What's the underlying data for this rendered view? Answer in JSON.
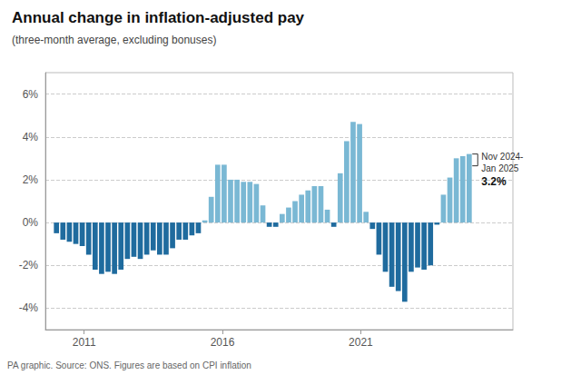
{
  "chart_data": {
    "type": "bar",
    "title": "Annual change in inflation-adjusted pay",
    "subtitle": "(three-month average, excluding bonuses)",
    "footer": "PA graphic. Source: ONS. Figures are based on CPI inflation",
    "annotations": [
      "Nov 2024-\nJan 2025",
      "3.2%"
    ],
    "x": [
      2010,
      2010.233125,
      2010.46625,
      2010.699375,
      2010.9325,
      2011.165625,
      2011.39875,
      2011.631875,
      2011.865,
      2012.098125,
      2012.33125,
      2012.564375,
      2012.7975,
      2013.030625,
      2013.26375,
      2013.496875,
      2013.73,
      2013.963125,
      2014.19625,
      2014.429375,
      2014.6625,
      2014.895625,
      2015.12875,
      2015.361875,
      2015.595,
      2015.828125,
      2016.06125,
      2016.294375,
      2016.5275,
      2016.760625,
      2016.99375,
      2017.226875,
      2017.46,
      2017.693125,
      2017.92625,
      2018.159375,
      2018.3925,
      2018.625625,
      2018.85875,
      2019.091875,
      2019.325,
      2019.558125,
      2019.79125,
      2020.024375,
      2020.2575,
      2020.490625,
      2020.72375,
      2020.956875,
      2021.19,
      2021.423125,
      2021.65625,
      2021.889375,
      2022.1225,
      2022.355625,
      2022.58875,
      2022.821875,
      2023.055,
      2023.288125,
      2023.52125,
      2023.754375,
      2023.9875,
      2024.220625,
      2024.45375,
      2024.686875,
      2024.92
    ],
    "values": [
      -0.5,
      -0.8,
      -0.9,
      -1.0,
      -1.1,
      -1.5,
      -2.2,
      -2.4,
      -2.3,
      -2.4,
      -2.2,
      -1.7,
      -1.6,
      -1.7,
      -1.5,
      -1.3,
      -1.5,
      -1.5,
      -1.2,
      -0.8,
      -0.8,
      -0.6,
      -0.5,
      0.1,
      1.2,
      2.7,
      2.7,
      2.0,
      2.0,
      1.9,
      1.9,
      1.8,
      0.8,
      -0.2,
      -0.2,
      0.4,
      0.7,
      1.0,
      1.3,
      1.5,
      1.7,
      1.7,
      0.6,
      -0.2,
      2.3,
      3.8,
      4.7,
      4.6,
      0.5,
      -0.3,
      -1.5,
      -2.3,
      -3.0,
      -3.2,
      -3.7,
      -2.3,
      -2.1,
      -2.2,
      -2.0,
      -0.1,
      1.3,
      2.1,
      3.0,
      3.1,
      3.2
    ],
    "colors": [
      "#1f6b9e",
      "#1f6b9e",
      "#1f6b9e",
      "#1f6b9e",
      "#1f6b9e",
      "#1f6b9e",
      "#1f6b9e",
      "#1f6b9e",
      "#1f6b9e",
      "#1f6b9e",
      "#1f6b9e",
      "#1f6b9e",
      "#1f6b9e",
      "#1f6b9e",
      "#1f6b9e",
      "#1f6b9e",
      "#1f6b9e",
      "#1f6b9e",
      "#1f6b9e",
      "#1f6b9e",
      "#1f6b9e",
      "#1f6b9e",
      "#1f6b9e",
      "#7ab8d4",
      "#7ab8d4",
      "#7ab8d4",
      "#7ab8d4",
      "#7ab8d4",
      "#7ab8d4",
      "#7ab8d4",
      "#7ab8d4",
      "#7ab8d4",
      "#7ab8d4",
      "#1f6b9e",
      "#1f6b9e",
      "#7ab8d4",
      "#7ab8d4",
      "#7ab8d4",
      "#7ab8d4",
      "#7ab8d4",
      "#7ab8d4",
      "#7ab8d4",
      "#7ab8d4",
      "#1f6b9e",
      "#7ab8d4",
      "#7ab8d4",
      "#7ab8d4",
      "#7ab8d4",
      "#7ab8d4",
      "#1f6b9e",
      "#1f6b9e",
      "#1f6b9e",
      "#1f6b9e",
      "#1f6b9e",
      "#1f6b9e",
      "#1f6b9e",
      "#1f6b9e",
      "#1f6b9e",
      "#1f6b9e",
      "#1f6b9e",
      "#7ab8d4",
      "#7ab8d4",
      "#7ab8d4",
      "#7ab8d4",
      "#7ab8d4"
    ],
    "xlim": [
      2009.6,
      2026.5
    ],
    "xticks": [
      2011,
      2016,
      2021
    ],
    "ylim": [
      -5.0,
      7.0
    ],
    "yticks": [
      {
        "value": -4,
        "label": "-4%"
      },
      {
        "value": -2,
        "label": "-2%"
      },
      {
        "value": 0,
        "label": "0%"
      },
      {
        "value": 2,
        "label": "2%"
      },
      {
        "value": 4,
        "label": "4%"
      },
      {
        "value": 6,
        "label": "6%"
      }
    ],
    "grid": true
  }
}
